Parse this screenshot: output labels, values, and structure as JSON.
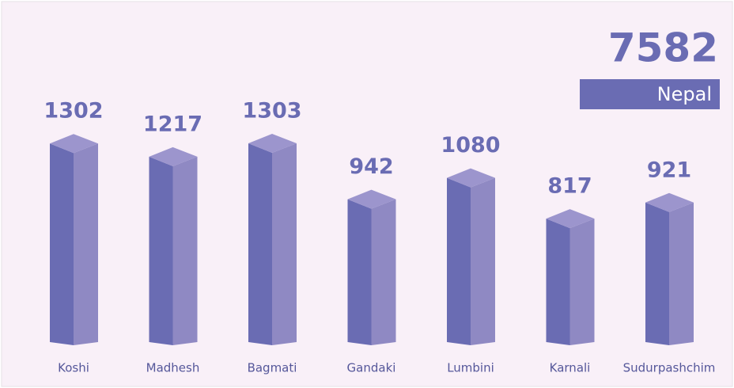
{
  "chart_data": {
    "type": "bar3d",
    "categories": [
      "Koshi",
      "Madhesh",
      "Bagmati",
      "Gandaki",
      "Lumbini",
      "Karnali",
      "Sudurpashchim"
    ],
    "values": [
      1302,
      1217,
      1303,
      942,
      1080,
      817,
      921
    ],
    "colors": {
      "front": "#6a6cb3",
      "side": "#8f89c3",
      "top": "#9c95cd"
    },
    "total": {
      "value": 7582,
      "label": "Nepal"
    }
  }
}
